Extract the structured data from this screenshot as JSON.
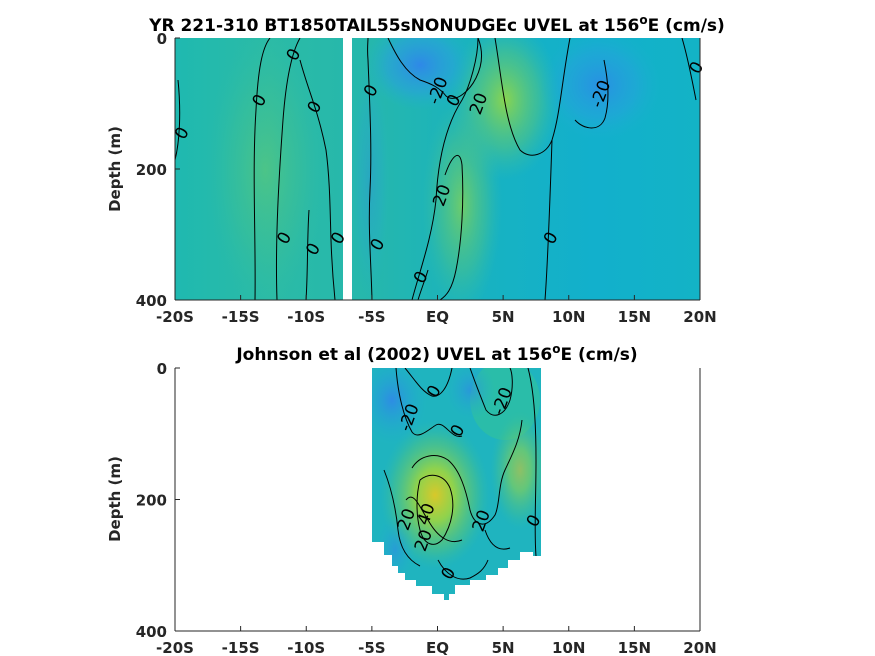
{
  "colors": {
    "background": "#ffffff",
    "field_base": "#14b5c8",
    "positive": "#7ed04a",
    "strong_positive": "#d8c82a",
    "negative": "#2f8ee8",
    "contour": "#000000",
    "axis": "#262626"
  },
  "chart_data": [
    {
      "type": "heatmap",
      "title": "YR 221-310 BT1850TAIL55sNONUDGEc UVEL at 156",
      "title_sup": "o",
      "title_tail": "E (cm/s)",
      "ylabel": "Depth (m)",
      "xlabel": "",
      "x_ticks": [
        "-20S",
        "-15S",
        "-10S",
        "-5S",
        "EQ",
        "5N",
        "10N",
        "15N",
        "20N"
      ],
      "y_ticks": [
        "0",
        "200",
        "400"
      ],
      "xlim": [
        -20,
        20
      ],
      "ylim": [
        0,
        400
      ],
      "y_reversed": true,
      "data_gap_lat": [
        -7.3,
        -6.6
      ],
      "contour_labels": [
        {
          "text": "0",
          "lat": -11,
          "depth": 25
        },
        {
          "text": "0",
          "lat": -13.6,
          "depth": 95
        },
        {
          "text": "0",
          "lat": -9.4,
          "depth": 105
        },
        {
          "text": "0",
          "lat": -19.5,
          "depth": 145
        },
        {
          "text": "0",
          "lat": -5.1,
          "depth": 80
        },
        {
          "text": "-20",
          "lat": 0,
          "depth": 80
        },
        {
          "text": "0",
          "lat": 1.2,
          "depth": 95
        },
        {
          "text": "20",
          "lat": 3.1,
          "depth": 100
        },
        {
          "text": "-20",
          "lat": 12.4,
          "depth": 85
        },
        {
          "text": "0",
          "lat": 19.7,
          "depth": 45
        },
        {
          "text": "20",
          "lat": 0.3,
          "depth": 240
        },
        {
          "text": "0",
          "lat": -11.7,
          "depth": 305
        },
        {
          "text": "0",
          "lat": -9.5,
          "depth": 322
        },
        {
          "text": "0",
          "lat": -7.6,
          "depth": 305
        },
        {
          "text": "0",
          "lat": -4.6,
          "depth": 315
        },
        {
          "text": "0",
          "lat": 8.6,
          "depth": 305
        },
        {
          "text": "0",
          "lat": -1.3,
          "depth": 365
        }
      ]
    },
    {
      "type": "heatmap",
      "title": "Johnson et al (2002) UVEL at 156",
      "title_sup": "o",
      "title_tail": "E (cm/s)",
      "ylabel": "Depth (m)",
      "xlabel": "",
      "x_ticks": [
        "-20S",
        "-15S",
        "-10S",
        "-5S",
        "EQ",
        "5N",
        "10N",
        "15N",
        "20N"
      ],
      "y_ticks": [
        "0",
        "200",
        "400"
      ],
      "xlim": [
        -20,
        20
      ],
      "ylim": [
        0,
        400
      ],
      "y_reversed": true,
      "data_lat_range": [
        -5,
        8
      ],
      "contour_labels": [
        {
          "text": "0",
          "lat": -0.3,
          "depth": 35
        },
        {
          "text": "-20",
          "lat": -2.2,
          "depth": 75
        },
        {
          "text": "0",
          "lat": 1.5,
          "depth": 95
        },
        {
          "text": "-20",
          "lat": 4.9,
          "depth": 50
        },
        {
          "text": "20",
          "lat": -2.4,
          "depth": 230
        },
        {
          "text": "40",
          "lat": -0.9,
          "depth": 222
        },
        {
          "text": "20",
          "lat": -1.1,
          "depth": 262
        },
        {
          "text": "20",
          "lat": 3.3,
          "depth": 232
        },
        {
          "text": "0",
          "lat": 7.3,
          "depth": 232
        },
        {
          "text": "0",
          "lat": 0.8,
          "depth": 312
        }
      ]
    }
  ]
}
